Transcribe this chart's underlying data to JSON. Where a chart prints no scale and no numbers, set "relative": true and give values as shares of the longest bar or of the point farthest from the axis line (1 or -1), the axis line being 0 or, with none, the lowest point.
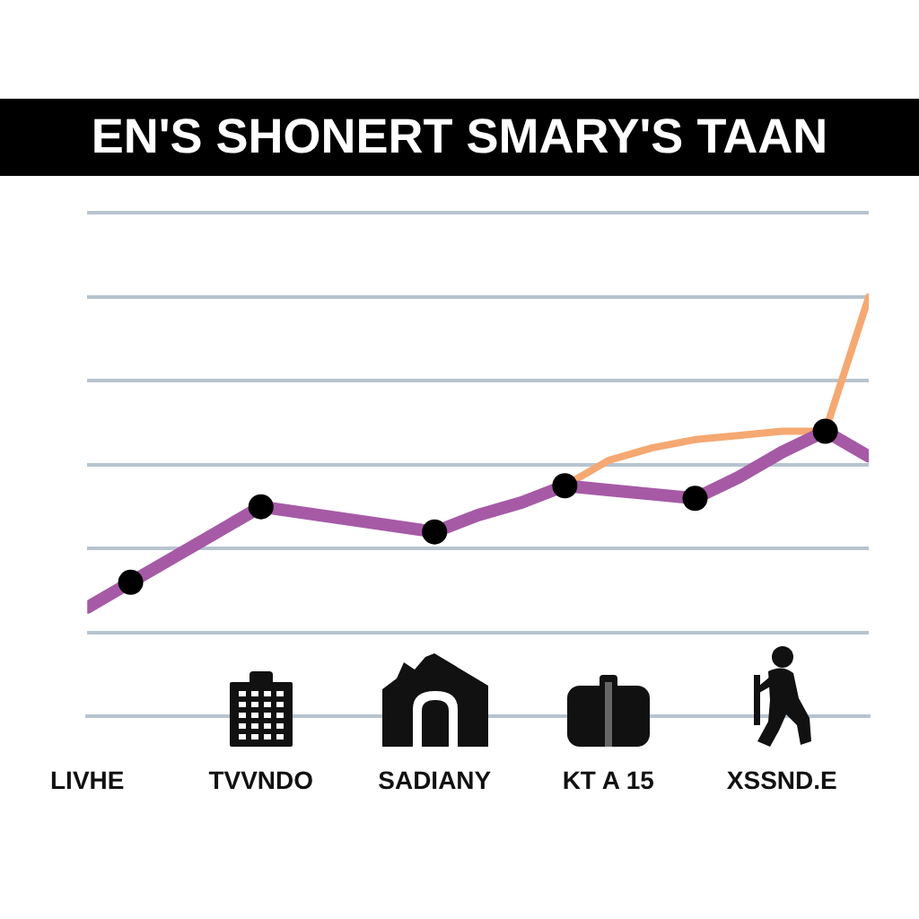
{
  "chart_data": {
    "type": "line",
    "title": "EN'S SHONERT SMARY'S TAAN",
    "relative": true,
    "categories": [
      "LIVHE",
      null,
      null,
      null,
      "TVVNDO",
      null,
      null,
      null,
      "SADIANY",
      null,
      null,
      null,
      "KT A 15",
      null,
      null,
      null,
      "XSSND.E",
      null,
      null
    ],
    "grid": "y",
    "series": [
      {
        "color": "#a65aa6",
        "values": [
          0.26,
          0.32,
          0.38,
          0.44,
          0.5,
          0.485,
          0.47,
          0.455,
          0.44,
          0.48,
          0.51,
          0.55,
          0.54,
          0.53,
          0.52,
          0.57,
          0.63,
          0.68,
          0.62
        ]
      },
      {
        "color": "#f5a872",
        "values": [
          null,
          null,
          null,
          null,
          null,
          null,
          null,
          null,
          null,
          null,
          null,
          0.55,
          0.61,
          0.64,
          0.66,
          0.67,
          0.68,
          0.68,
          1.0
        ]
      },
      {
        "type": "scatter",
        "color": "#000000",
        "marker": "circle",
        "values": [
          null,
          0.32,
          null,
          null,
          0.5,
          null,
          null,
          null,
          0.44,
          null,
          null,
          0.55,
          null,
          null,
          0.52,
          null,
          null,
          0.68,
          null
        ]
      }
    ]
  }
}
